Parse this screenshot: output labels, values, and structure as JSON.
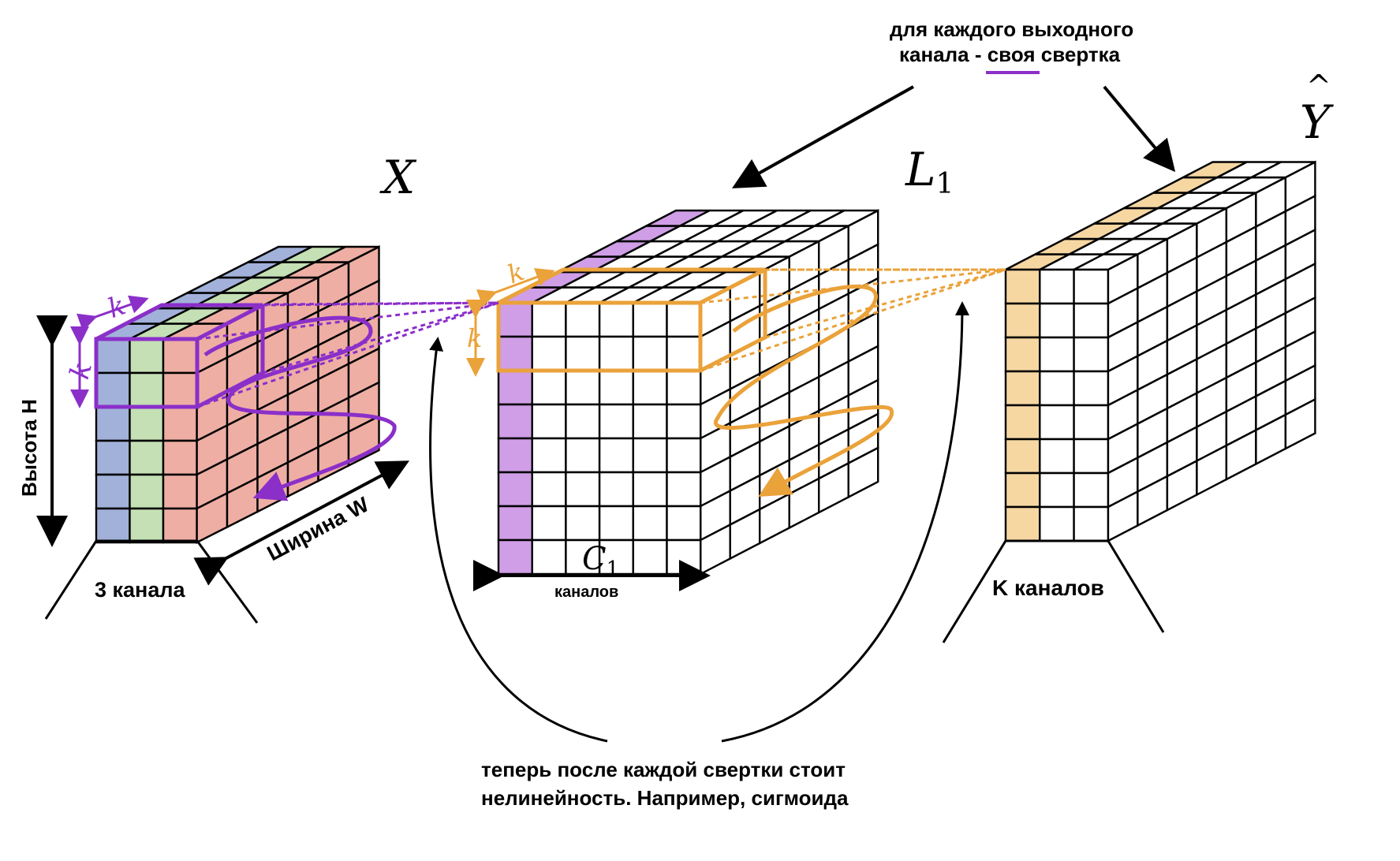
{
  "colors": {
    "purple": "#8b2fc9",
    "purple_fill": "#cf9ee6",
    "orange": "#eaa23a",
    "orange_fill": "#f6d7a2",
    "input_blue": "#a2b1da",
    "input_green": "#c4e0b4",
    "input_red": "#eeaea3",
    "grid": "#000000"
  },
  "labels": {
    "x": "X",
    "l1": "L",
    "l1_sub": "1",
    "y": "Y",
    "y_hat": "^",
    "c1": "C",
    "c1_sub": "1",
    "k": "k"
  },
  "annotations": {
    "top_line1": "для каждого выходного",
    "top_line2": "канала - своя свертка",
    "height": "Высота H",
    "width": "Ширина W",
    "three_channels": "3 канала",
    "channels": "каналов",
    "k_channels": "K каналов",
    "bottom_line1": "теперь после каждой свертки стоит",
    "bottom_line2": "нелинейность. Например, сигмоида"
  }
}
